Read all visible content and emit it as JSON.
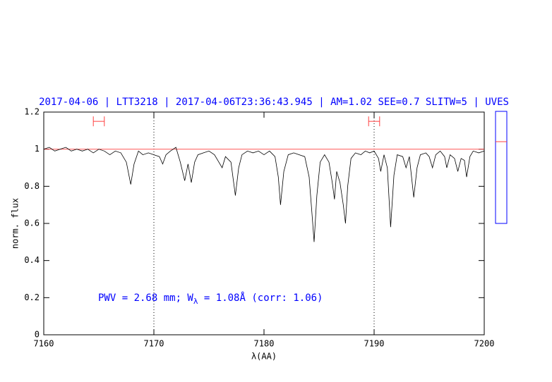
{
  "chart_data": {
    "type": "line",
    "title": "2017-04-06 | LTT3218 | 2017-04-06T23:36:43.945 | AM=1.02 SEE=0.7 SLITW=5 | UVES",
    "xlabel": "λ(AA)",
    "ylabel": "norm. flux",
    "annotation": [
      "PWV = 2.68 mm; W",
      "λ",
      " = 1.08Å (corr: 1.06)"
    ],
    "xlim": [
      7160,
      7200
    ],
    "ylim": [
      0,
      1.2
    ],
    "xticks": [
      7160,
      7170,
      7180,
      7190,
      7200
    ],
    "yticks": [
      0,
      0.2,
      0.4,
      0.6,
      0.8,
      1,
      1.2
    ],
    "vlines": [
      7170,
      7190
    ],
    "error_bars": {
      "color": "#ff4040",
      "points": [
        {
          "x": 7165,
          "xerr": 0.5,
          "y": 1.15
        },
        {
          "x": 7190,
          "xerr": 0.5,
          "y": 1.15
        }
      ]
    },
    "series": [
      {
        "color": "#000000",
        "x": [
          7160.0,
          7160.5,
          7161.0,
          7161.5,
          7162.0,
          7162.5,
          7163.0,
          7163.5,
          7164.0,
          7164.5,
          7165.0,
          7165.5,
          7166.0,
          7166.5,
          7167.0,
          7167.5,
          7167.9,
          7168.2,
          7168.6,
          7169.0,
          7169.5,
          7170.0,
          7170.5,
          7170.8,
          7171.1,
          7171.5,
          7172.0,
          7172.4,
          7172.8,
          7173.1,
          7173.4,
          7173.7,
          7174.0,
          7174.5,
          7175.0,
          7175.5,
          7175.9,
          7176.2,
          7176.5,
          7177.0,
          7177.4,
          7177.7,
          7178.0,
          7178.5,
          7179.0,
          7179.5,
          7180.0,
          7180.5,
          7181.0,
          7181.3,
          7181.5,
          7181.8,
          7182.2,
          7182.7,
          7183.2,
          7183.7,
          7184.1,
          7184.4,
          7184.55,
          7184.8,
          7185.1,
          7185.5,
          7185.9,
          7186.2,
          7186.4,
          7186.6,
          7186.9,
          7187.2,
          7187.4,
          7187.6,
          7187.9,
          7188.3,
          7188.8,
          7189.2,
          7189.6,
          7190.0,
          7190.4,
          7190.6,
          7190.9,
          7191.2,
          7191.5,
          7191.8,
          7192.1,
          7192.6,
          7192.9,
          7193.2,
          7193.6,
          7193.9,
          7194.2,
          7194.7,
          7195.0,
          7195.3,
          7195.6,
          7196.0,
          7196.4,
          7196.6,
          7196.9,
          7197.3,
          7197.6,
          7197.9,
          7198.2,
          7198.4,
          7198.7,
          7199.0,
          7199.5,
          7200.0
        ],
        "values": [
          1.0,
          1.01,
          0.99,
          1.0,
          1.01,
          0.99,
          1.0,
          0.99,
          1.0,
          0.98,
          1.0,
          0.99,
          0.97,
          0.99,
          0.98,
          0.93,
          0.81,
          0.92,
          0.99,
          0.97,
          0.98,
          0.97,
          0.96,
          0.92,
          0.97,
          0.99,
          1.01,
          0.93,
          0.83,
          0.92,
          0.82,
          0.93,
          0.97,
          0.98,
          0.99,
          0.97,
          0.93,
          0.9,
          0.96,
          0.93,
          0.75,
          0.9,
          0.97,
          0.99,
          0.98,
          0.99,
          0.97,
          0.99,
          0.96,
          0.85,
          0.7,
          0.88,
          0.97,
          0.98,
          0.97,
          0.96,
          0.85,
          0.62,
          0.5,
          0.75,
          0.93,
          0.97,
          0.93,
          0.82,
          0.73,
          0.88,
          0.82,
          0.7,
          0.6,
          0.8,
          0.95,
          0.98,
          0.97,
          0.99,
          0.98,
          0.99,
          0.95,
          0.88,
          0.97,
          0.9,
          0.58,
          0.86,
          0.97,
          0.96,
          0.9,
          0.96,
          0.74,
          0.9,
          0.97,
          0.98,
          0.96,
          0.9,
          0.97,
          0.99,
          0.96,
          0.9,
          0.97,
          0.95,
          0.88,
          0.95,
          0.94,
          0.85,
          0.96,
          0.99,
          0.98,
          0.99
        ]
      },
      {
        "color": "#ff4040",
        "x": [
          7160,
          7200
        ],
        "values": [
          1,
          1
        ]
      }
    ]
  }
}
